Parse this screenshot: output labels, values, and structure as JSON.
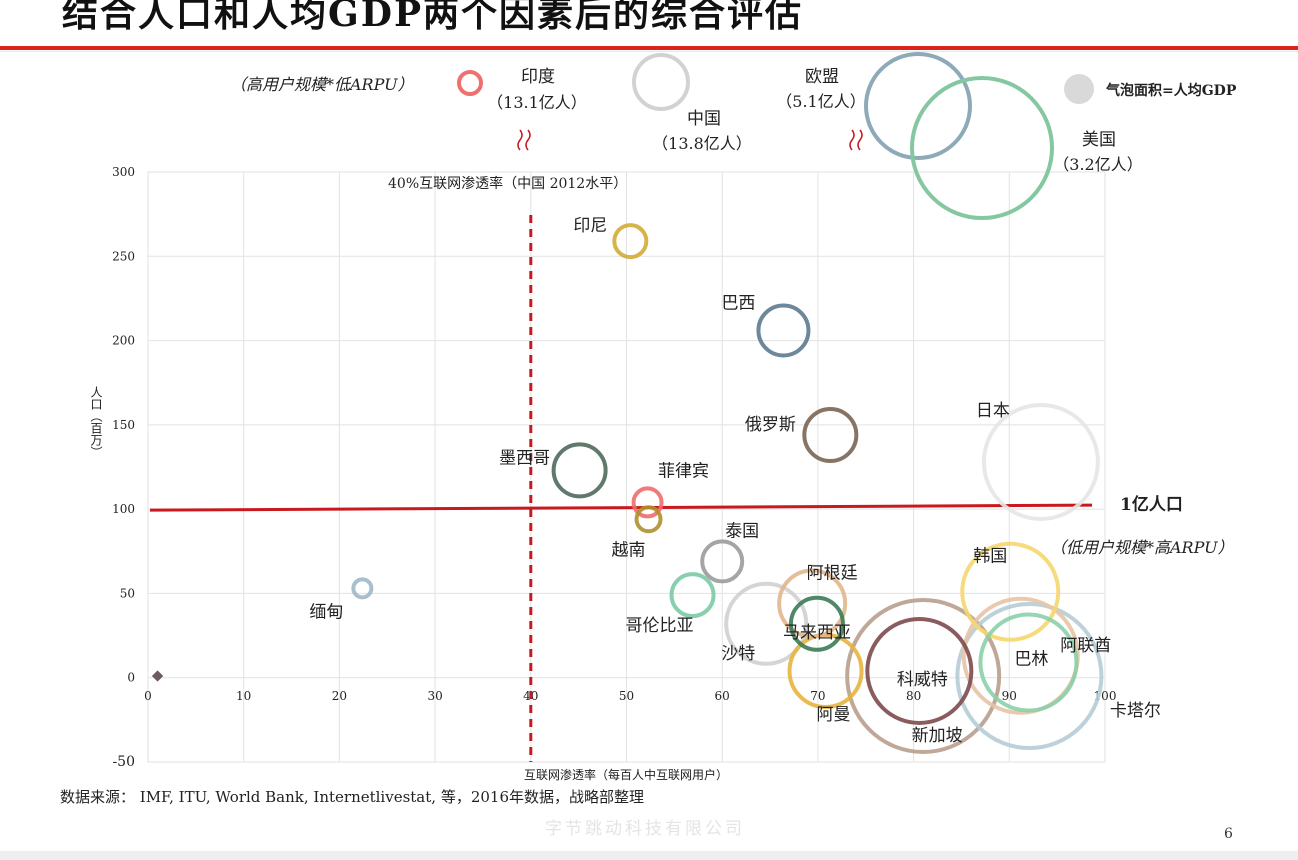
{
  "slide": {
    "title": "结合人口和人均GDP两个因素后的综合评估",
    "source": "数据来源： IMF, ITU, World Bank, Internetlivestat, 等，2016年数据，战略部整理",
    "watermark": "字节跳动科技有限公司",
    "page_number": "6"
  },
  "colors": {
    "accent_red": "#c8191e",
    "title_rule": "#d9241c",
    "grid": "#e2e2e2",
    "axis_text": "#888888"
  },
  "chart_data": {
    "type": "scatter",
    "bubble_size_meaning": "人均GDP",
    "xlabel": "互联网渗透率（每百人中互联网用户）",
    "ylabel": "人口（百万）",
    "xlim": [
      0,
      100
    ],
    "ylim": [
      -50,
      300
    ],
    "x_ticks": [
      0,
      10,
      20,
      30,
      40,
      50,
      60,
      70,
      80,
      90,
      100
    ],
    "y_ticks": [
      -50,
      0,
      50,
      100,
      150,
      200,
      250,
      300
    ],
    "grid": true,
    "legend": {
      "text": "气泡面积=人均GDP",
      "position": "top-right",
      "swatch_color": "#d9d9d9"
    },
    "reference_lines": {
      "vertical": {
        "x": 40,
        "label": "40%互联网渗透率（中国 2012水平）",
        "color": "#c8191e",
        "style": "dashed"
      },
      "horizontal": {
        "y": 100,
        "label": "1亿人口",
        "color": "#c8191e",
        "style": "solid"
      }
    },
    "quadrant_labels": {
      "top_left": "（高用户规模*低ARPU）",
      "bottom_right": "（低用户规模*高ARPU）"
    },
    "points": [
      {
        "name": "印尼",
        "x": 50.4,
        "y": 259,
        "r": 16,
        "color": "#d2ac35"
      },
      {
        "name": "巴西",
        "x": 66.4,
        "y": 206,
        "r": 25,
        "color": "#5c7b8f"
      },
      {
        "name": "俄罗斯",
        "x": 71.3,
        "y": 144,
        "r": 26,
        "color": "#7b6553"
      },
      {
        "name": "日本",
        "x": 93.3,
        "y": 128,
        "r": 57,
        "color": "#e5e5e5"
      },
      {
        "name": "墨西哥",
        "x": 45.1,
        "y": 123,
        "r": 26,
        "color": "#4f6a5c"
      },
      {
        "name": "菲律宾",
        "x": 52.2,
        "y": 104,
        "r": 14,
        "color": "#ef6b6b"
      },
      {
        "name": "越南",
        "x": 52.3,
        "y": 94,
        "r": 12,
        "color": "#b08f2e"
      },
      {
        "name": "泰国",
        "x": 60.0,
        "y": 69,
        "r": 20,
        "color": "#9b9b9b"
      },
      {
        "name": "阿根廷",
        "x": 69.4,
        "y": 44,
        "r": 33,
        "color": "#e0b78d"
      },
      {
        "name": "韩国",
        "x": 90.1,
        "y": 51,
        "r": 48,
        "color": "#f5d76e"
      },
      {
        "name": "缅甸",
        "x": 22.4,
        "y": 53,
        "r": 9,
        "color": "#9fb8c8"
      },
      {
        "name": "哥伦比亚",
        "x": 56.9,
        "y": 49,
        "r": 21,
        "color": "#7ccaa6"
      },
      {
        "name": "沙特",
        "x": 64.6,
        "y": 32,
        "r": 40,
        "color": "#d0d0d0"
      },
      {
        "name": "马来西亚",
        "x": 69.9,
        "y": 32,
        "r": 26,
        "color": "#3c7a56"
      },
      {
        "name": "阿曼",
        "x": 70.8,
        "y": 4,
        "r": 36,
        "color": "#e7b43d"
      },
      {
        "name": "科威特",
        "x": 80.6,
        "y": 4,
        "r": 52,
        "color": "#7d4a4d"
      },
      {
        "name": "新加坡",
        "x": 81.0,
        "y": 1,
        "r": 76,
        "color": "#b99f8d"
      },
      {
        "name": "巴林",
        "x": 92.0,
        "y": 9,
        "r": 48,
        "color": "#8ccfa8"
      },
      {
        "name": "阿联酋",
        "x": 91.2,
        "y": 13,
        "r": 57,
        "color": "#e7c4a5"
      },
      {
        "name": "卡塔尔",
        "x": 92.1,
        "y": 1,
        "r": 72,
        "color": "#b6ccd6"
      }
    ],
    "off_chart_points": [
      {
        "name": "印度",
        "population_label": "（13.1亿人）",
        "r": 11,
        "color": "#f07070"
      },
      {
        "name": "中国",
        "population_label": "（13.8亿人）",
        "r": 27,
        "color": "#d2d2d2"
      },
      {
        "name": "欧盟",
        "population_label": "（5.1亿人）",
        "r": 52,
        "color": "#8ea9b8"
      },
      {
        "name": "美国",
        "population_label": "（3.2亿人）",
        "r": 70,
        "color": "#84c7a0"
      }
    ]
  }
}
